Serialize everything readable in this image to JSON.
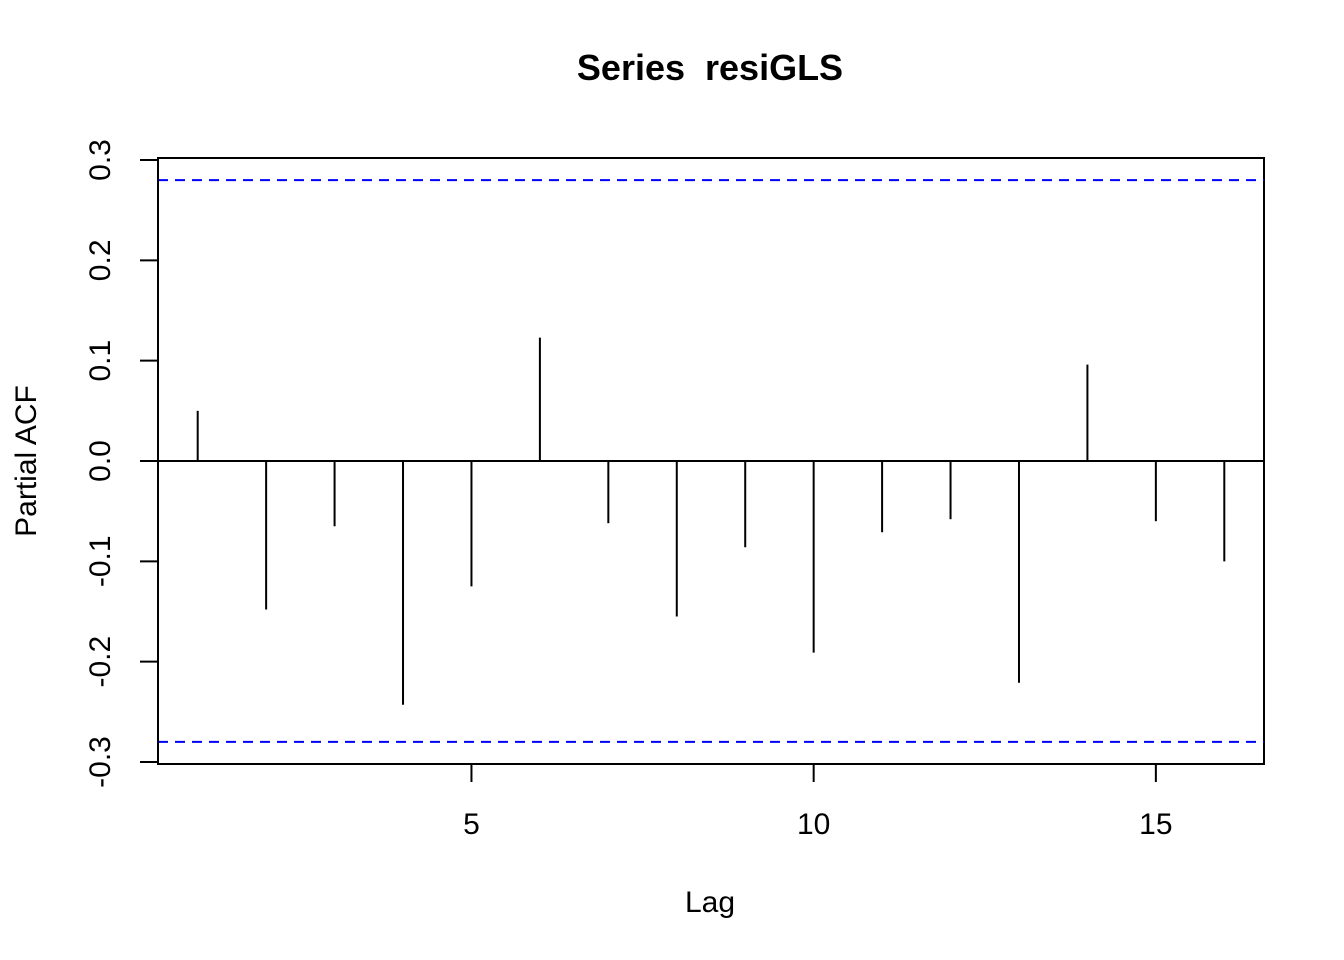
{
  "chart_data": {
    "type": "bar",
    "title": "Series  resiGLS",
    "xlabel": "Lag",
    "ylabel": "Partial ACF",
    "xlim": [
      0.42,
      16.58
    ],
    "ylim": [
      -0.3,
      0.3
    ],
    "x_ticks": [
      5,
      10,
      15
    ],
    "y_ticks": [
      -0.3,
      -0.2,
      -0.1,
      0.0,
      0.1,
      0.2,
      0.3
    ],
    "y_tick_labels": [
      "-0.3",
      "-0.2",
      "-0.1",
      "0.0",
      "0.1",
      "0.2",
      "0.3"
    ],
    "lags": [
      1,
      2,
      3,
      4,
      5,
      6,
      7,
      8,
      9,
      10,
      11,
      12,
      13,
      14,
      15,
      16
    ],
    "values": [
      0.05,
      -0.148,
      -0.065,
      -0.243,
      -0.125,
      0.123,
      -0.062,
      -0.155,
      -0.086,
      -0.191,
      -0.071,
      -0.058,
      -0.221,
      0.096,
      -0.06,
      -0.1
    ],
    "confidence_bounds": [
      0.28,
      -0.28
    ],
    "colors": {
      "bars": "#000000",
      "bounds": "#0000ff",
      "axis": "#000000"
    },
    "grid": false
  }
}
